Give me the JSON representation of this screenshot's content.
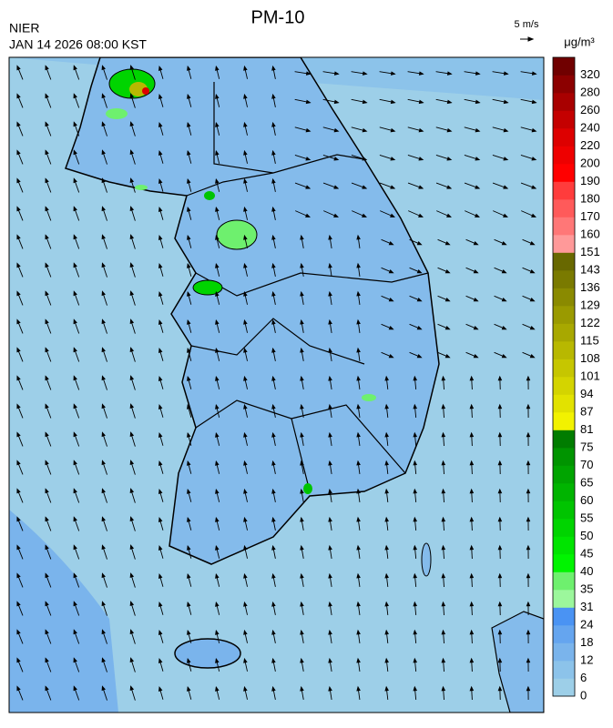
{
  "header": {
    "title": "PM-10",
    "agency": "NIER",
    "datetime": "JAN 14 2026 08:00 KST",
    "wind_scale": "5 m/s",
    "unit": "μg/m³"
  },
  "colorbar": {
    "labels": [
      "0",
      "6",
      "12",
      "18",
      "24",
      "31",
      "35",
      "40",
      "45",
      "50",
      "55",
      "60",
      "65",
      "70",
      "75",
      "81",
      "87",
      "94",
      "101",
      "108",
      "115",
      "122",
      "129",
      "136",
      "143",
      "151",
      "160",
      "170",
      "180",
      "190",
      "200",
      "220",
      "240",
      "260",
      "280",
      "320"
    ],
    "colors": [
      "#9dcfe8",
      "#8cc3ea",
      "#7ab4ec",
      "#65a5ef",
      "#4a93f3",
      "#9cf79c",
      "#6ef06e",
      "#00f400",
      "#00e400",
      "#00d400",
      "#00c400",
      "#00b400",
      "#00a400",
      "#009400",
      "#007c00",
      "#f2f200",
      "#e2e200",
      "#d4d400",
      "#c6c600",
      "#b8b800",
      "#a8a800",
      "#9a9a00",
      "#8a8a00",
      "#7a7a00",
      "#686800",
      "#ff9999",
      "#ff7777",
      "#ff5a5a",
      "#ff3c3c",
      "#ff0000",
      "#ee0000",
      "#dd0000",
      "#c40000",
      "#a80000",
      "#8c0000",
      "#700000"
    ]
  }
}
